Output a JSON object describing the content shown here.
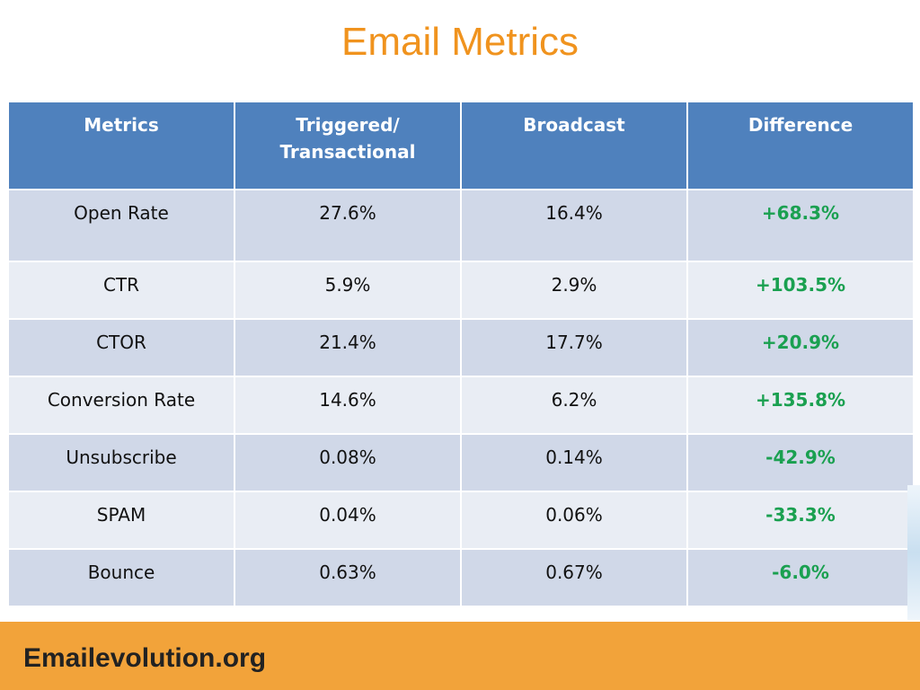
{
  "slide": {
    "title": "Email Metrics",
    "brand": "Emailevolution.org"
  },
  "table": {
    "headers": {
      "metrics": "Metrics",
      "triggered_line1": "Triggered/",
      "triggered_line2": "Transactional",
      "broadcast": "Broadcast",
      "difference": "Difference"
    },
    "rows": [
      {
        "metric": "Open Rate",
        "triggered": "27.6%",
        "broadcast": "16.4%",
        "difference": "+68.3%"
      },
      {
        "metric": "CTR",
        "triggered": "5.9%",
        "broadcast": "2.9%",
        "difference": "+103.5%"
      },
      {
        "metric": "CTOR",
        "triggered": "21.4%",
        "broadcast": "17.7%",
        "difference": "+20.9%"
      },
      {
        "metric": "Conversion Rate",
        "triggered": "14.6%",
        "broadcast": "6.2%",
        "difference": "+135.8%"
      },
      {
        "metric": "Unsubscribe",
        "triggered": "0.08%",
        "broadcast": "0.14%",
        "difference": "-42.9%"
      },
      {
        "metric": "SPAM",
        "triggered": "0.04%",
        "broadcast": "0.06%",
        "difference": "-33.3%"
      },
      {
        "metric": "Bounce",
        "triggered": "0.63%",
        "broadcast": "0.67%",
        "difference": "-6.0%"
      }
    ]
  },
  "colors": {
    "title": "#f0931e",
    "header_bg": "#4f81bd",
    "row_dark": "#d0d8e8",
    "row_light": "#e9edf4",
    "difference_text": "#1aa050",
    "footer_band": "#f2a33a"
  }
}
